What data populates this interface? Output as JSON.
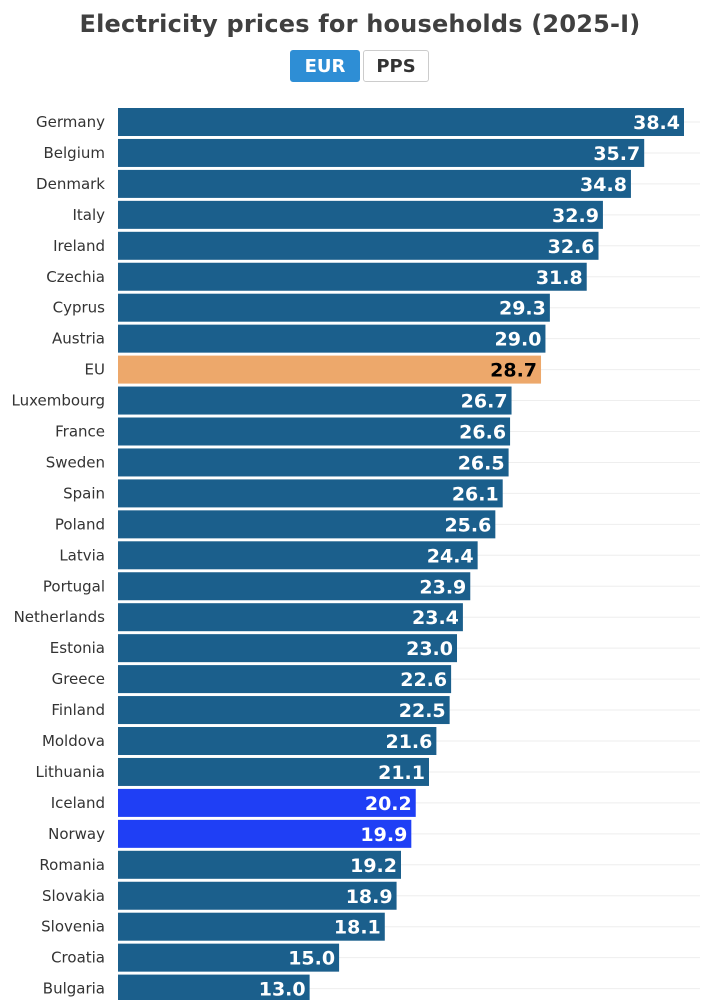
{
  "title": "Electricity prices for households (2025-I)",
  "toggle": {
    "options": [
      "EUR",
      "PPS"
    ],
    "selected": "EUR"
  },
  "colors": {
    "default_bar": "#1b5f8c",
    "highlight_eu": "#eda86b",
    "highlight_blue": "#1f3ff5",
    "label_light": "#ffffff",
    "label_dark": "#000000",
    "active_toggle": "#2e8ed5"
  },
  "chart_data": {
    "type": "bar",
    "orientation": "horizontal",
    "title": "Electricity prices for households (2025-I)",
    "unit": "EUR",
    "categories": [
      "Germany",
      "Belgium",
      "Denmark",
      "Italy",
      "Ireland",
      "Czechia",
      "Cyprus",
      "Austria",
      "EU",
      "Luxembourg",
      "France",
      "Sweden",
      "Spain",
      "Poland",
      "Latvia",
      "Portugal",
      "Netherlands",
      "Estonia",
      "Greece",
      "Finland",
      "Moldova",
      "Lithuania",
      "Iceland",
      "Norway",
      "Romania",
      "Slovakia",
      "Slovenia",
      "Croatia",
      "Bulgaria"
    ],
    "values": [
      38.4,
      35.7,
      34.8,
      32.9,
      32.6,
      31.8,
      29.3,
      29.0,
      28.7,
      26.7,
      26.6,
      26.5,
      26.1,
      25.6,
      24.4,
      23.9,
      23.4,
      23.0,
      22.6,
      22.5,
      21.6,
      21.1,
      20.2,
      19.9,
      19.2,
      18.9,
      18.1,
      15.0,
      13.0
    ],
    "value_labels": [
      "38.4",
      "35.7",
      "34.8",
      "32.9",
      "32.6",
      "31.8",
      "29.3",
      "29.0",
      "28.7",
      "26.7",
      "26.6",
      "26.5",
      "26.1",
      "25.6",
      "24.4",
      "23.9",
      "23.4",
      "23.0",
      "22.6",
      "22.5",
      "21.6",
      "21.1",
      "20.2",
      "19.9",
      "19.2",
      "18.9",
      "18.1",
      "15.0",
      "13.0"
    ],
    "highlights": {
      "EU": "#eda86b",
      "Iceland": "#1f3ff5",
      "Norway": "#1f3ff5"
    },
    "xlim": [
      0,
      38.4
    ],
    "grid": true,
    "legend": "none"
  }
}
